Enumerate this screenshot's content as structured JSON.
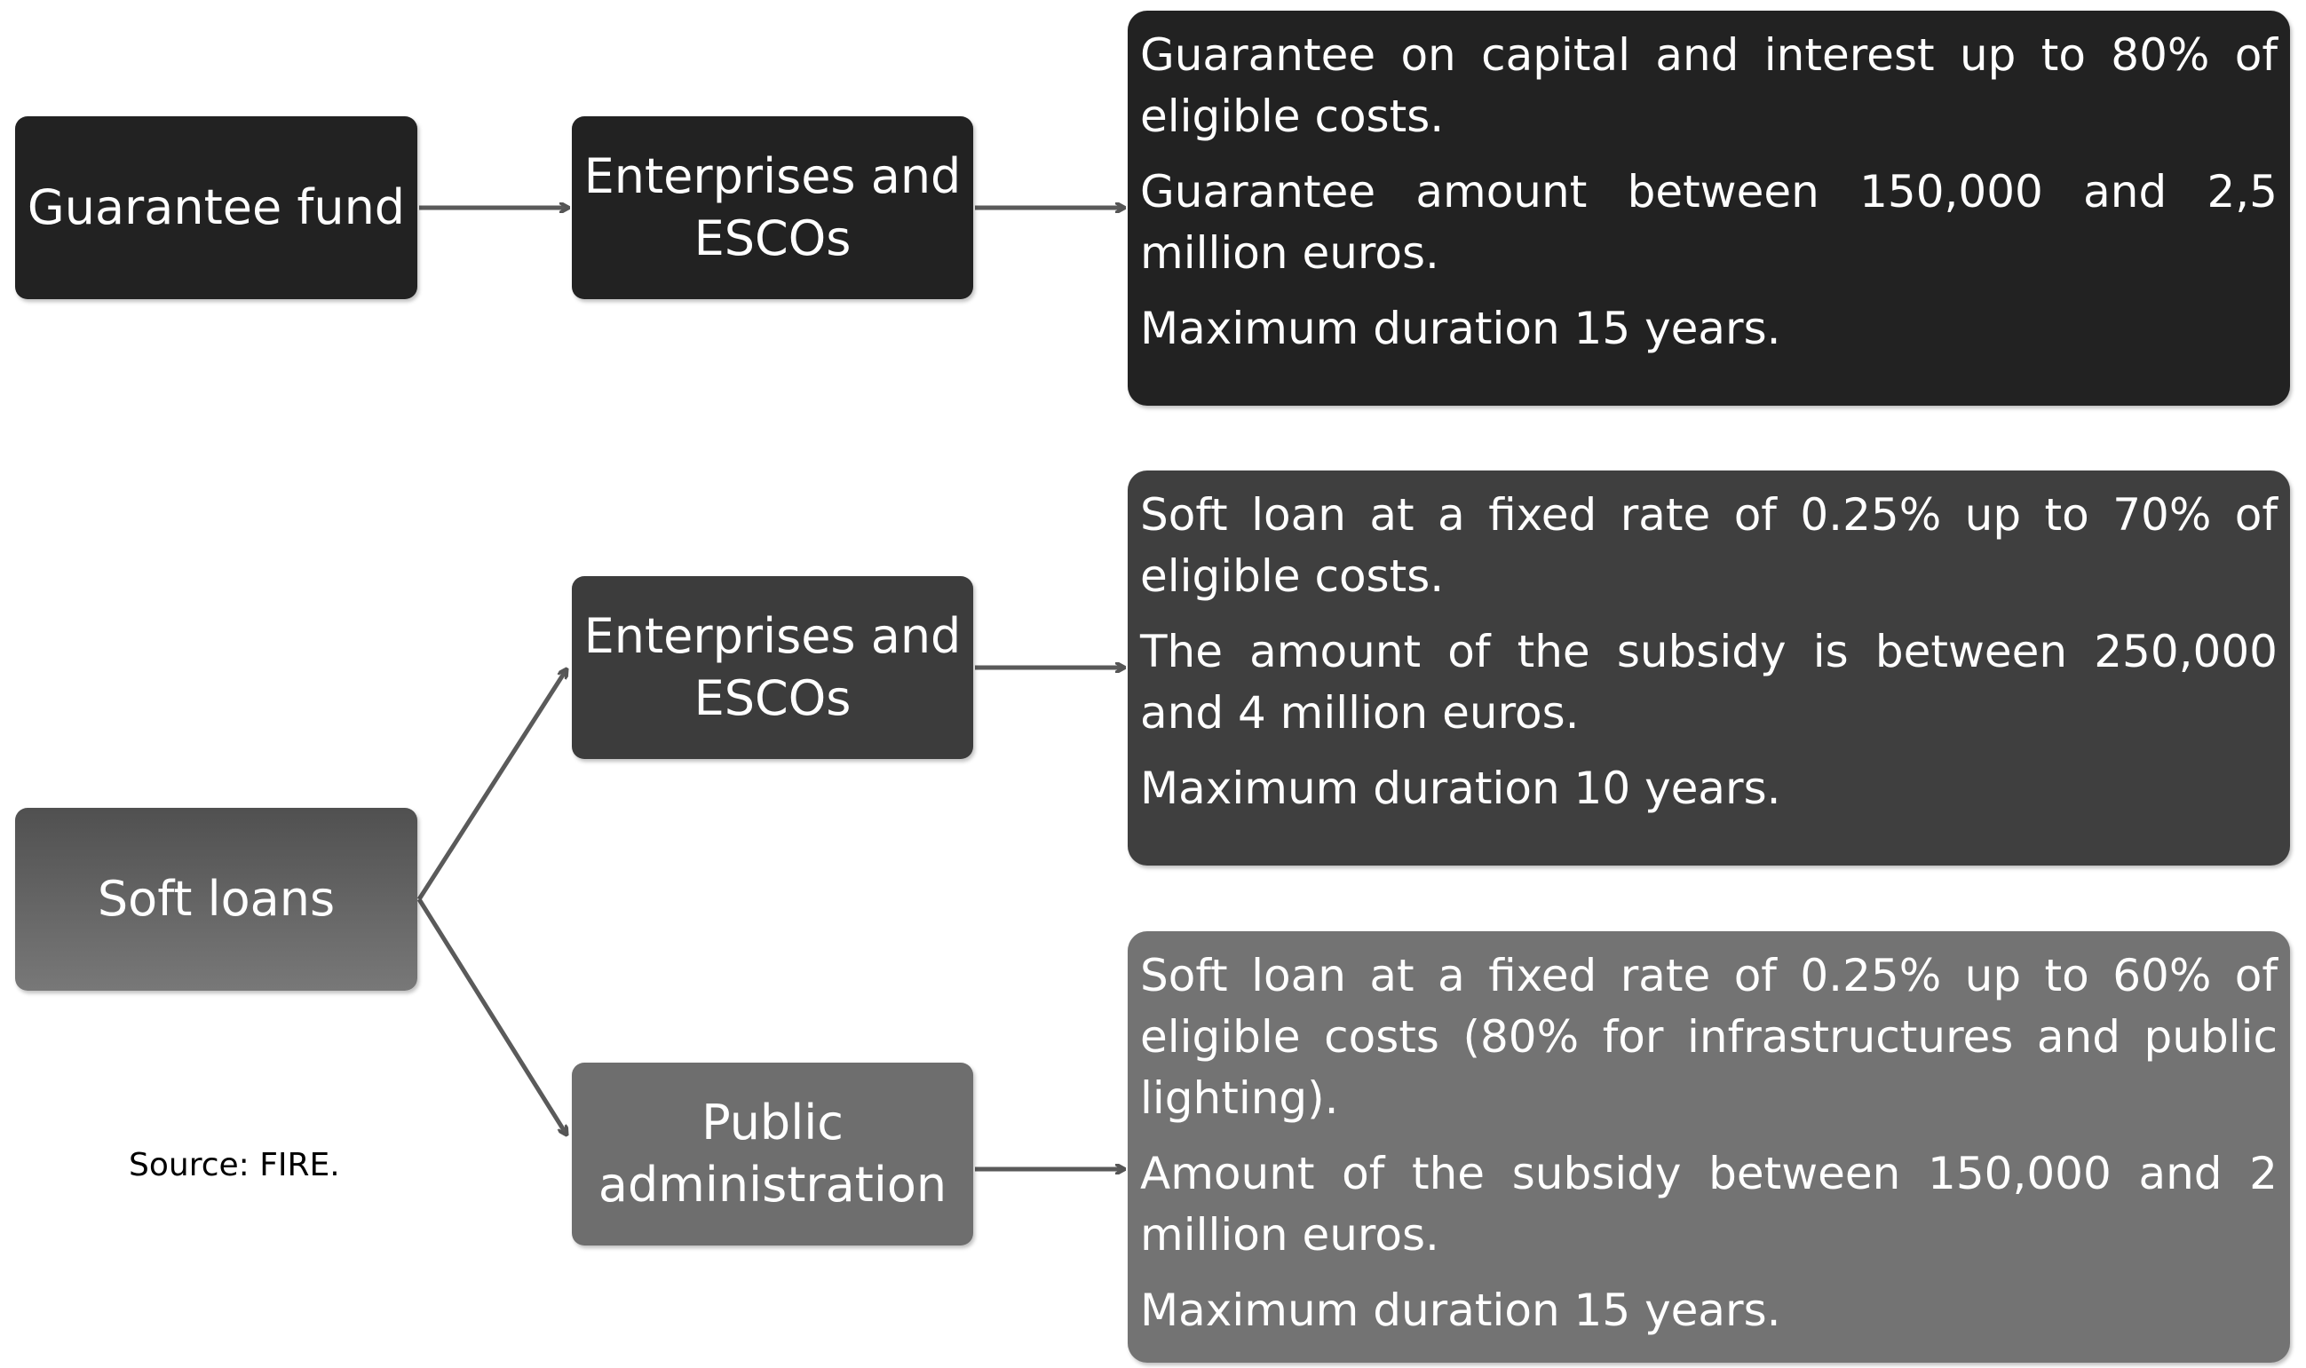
{
  "nodes": [
    {
      "label": "Guarantee fund"
    },
    {
      "label": "Enterprises and ESCOs"
    },
    {
      "label": "Soft loans"
    },
    {
      "label": "Enterprises and ESCOs"
    },
    {
      "label": "Public administration"
    }
  ],
  "details": [
    {
      "paragraphs": [
        "Guarantee on capital and interest up to 80% of eligible costs.",
        "Guarantee amount between 150,000 and 2,5 million euros.",
        "Maximum duration 15 years."
      ]
    },
    {
      "paragraphs": [
        "Soft loan at a fixed rate of 0.25% up to 70% of eligible costs.",
        "The amount of the subsidy is between 250,000 and 4 million euros.",
        "Maximum duration 10 years."
      ]
    },
    {
      "paragraphs": [
        "Soft loan at a fixed rate of 0.25% up to 60% of eligible costs (80% for infrastructures and public lighting).",
        "Amount of the subsidy between 150,000 and 2 million euros.",
        "Maximum duration 15 years."
      ]
    }
  ],
  "source": "Source: FIRE."
}
